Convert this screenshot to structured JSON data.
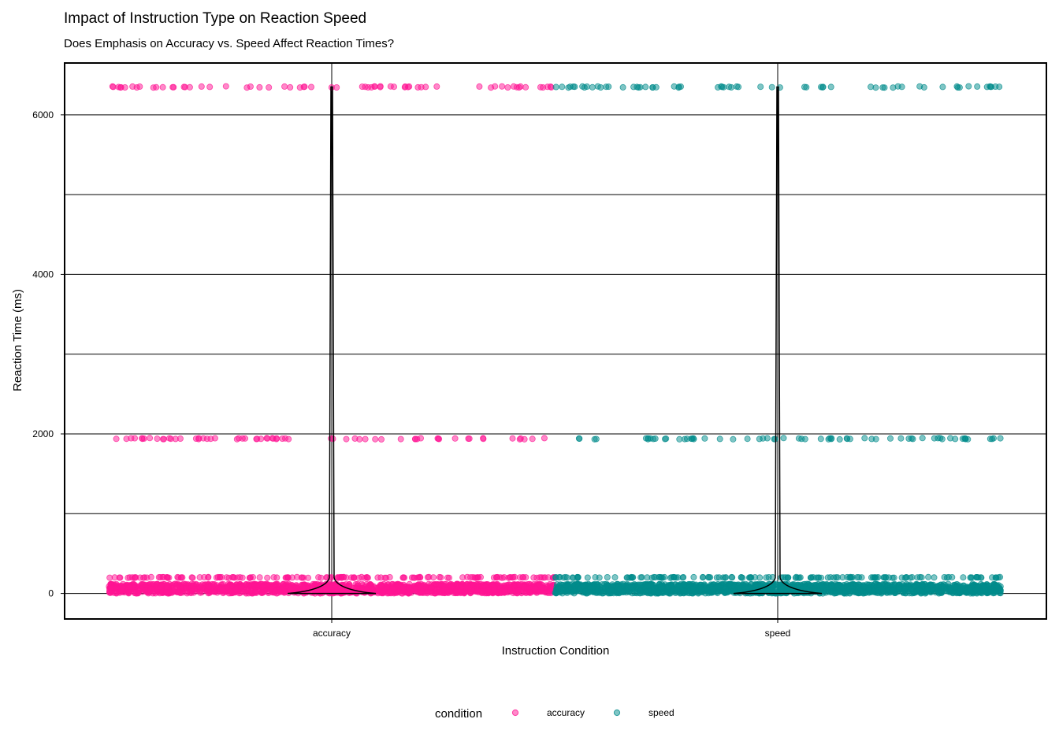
{
  "chart_data": {
    "type": "scatter",
    "title": "Impact of Instruction Type on Reaction Speed",
    "subtitle": "Does Emphasis on Accuracy vs. Speed Affect Reaction Times?",
    "xlabel": "Instruction Condition",
    "ylabel": "Reaction Time (ms)",
    "categories": [
      "accuracy",
      "speed"
    ],
    "ylim": [
      -320,
      6650
    ],
    "yticks": [
      0,
      2000,
      4000,
      6000
    ],
    "grid": true,
    "overlay": "violin",
    "legend": {
      "title": "condition",
      "position": "bottom",
      "entries": [
        "accuracy",
        "speed"
      ]
    },
    "colors": {
      "accuracy": "#ff1493",
      "speed": "#008b8b"
    },
    "series": [
      {
        "name": "accuracy",
        "typical_rt_range": [
          0,
          120
        ],
        "secondary_cluster_rt": 200,
        "outlier_clusters_rt": [
          1940,
          6350
        ]
      },
      {
        "name": "speed",
        "typical_rt_range": [
          0,
          120
        ],
        "secondary_cluster_rt": 200,
        "outlier_clusters_rt": [
          1940,
          6350
        ]
      }
    ]
  }
}
